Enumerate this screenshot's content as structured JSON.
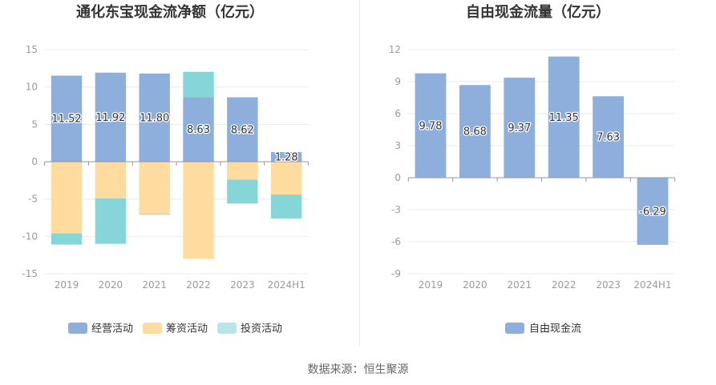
{
  "source_note": "数据来源：恒生聚源",
  "chart_data": [
    {
      "type": "bar",
      "stacked": true,
      "title": "通化东宝现金流净额（亿元）",
      "categories": [
        "2019",
        "2020",
        "2021",
        "2022",
        "2023",
        "2024H1"
      ],
      "series": [
        {
          "name": "经营活动",
          "color": "#8eaedc",
          "values": [
            11.52,
            11.92,
            11.8,
            8.63,
            8.62,
            1.28
          ],
          "labels": [
            "11.52",
            "11.92",
            "11.80",
            "8.63",
            "8.62",
            "1.28"
          ]
        },
        {
          "name": "筹资活动",
          "color": "#fedb9f",
          "values": [
            -9.6,
            -4.9,
            -7.0,
            -13.0,
            -2.4,
            -4.4
          ]
        },
        {
          "name": "投资活动",
          "color": "#86d6d9",
          "values": [
            -1.5,
            -6.1,
            -0.1,
            3.4,
            -3.2,
            -3.2
          ]
        }
      ],
      "ylim": [
        -15,
        15
      ],
      "yticks": [
        15,
        10,
        5,
        0,
        -5,
        -10,
        -15
      ],
      "grid": true,
      "legend": "bottom"
    },
    {
      "type": "bar",
      "stacked": false,
      "title": "自由现金流量（亿元）",
      "categories": [
        "2019",
        "2020",
        "2021",
        "2022",
        "2023",
        "2024H1"
      ],
      "series": [
        {
          "name": "自由现金流",
          "color": "#8eaedc",
          "values": [
            9.78,
            8.68,
            9.37,
            11.35,
            7.63,
            -6.29
          ],
          "labels": [
            "9.78",
            "8.68",
            "9.37",
            "11.35",
            "7.63",
            "-6.29"
          ]
        }
      ],
      "ylim": [
        -9,
        12
      ],
      "yticks": [
        12,
        9,
        6,
        3,
        0,
        -3,
        -6,
        -9
      ],
      "grid": true,
      "legend": "bottom"
    }
  ]
}
